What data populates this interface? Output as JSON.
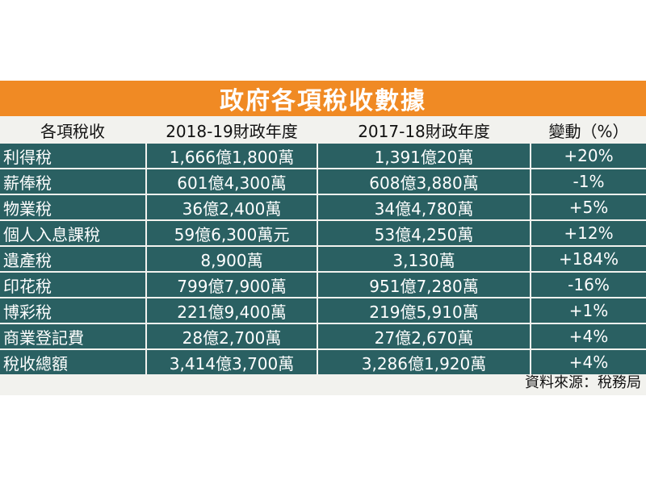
{
  "title": "政府各項稅收數據",
  "headers": [
    "各項稅收",
    "2018-19財政年度",
    "2017-18財政年度",
    "變動（%）"
  ],
  "rows": [
    [
      "利得稅",
      "1,666億1,800萬",
      "1,391億20萬",
      "+20%"
    ],
    [
      "薪俸稅",
      "601億4,300萬",
      "608億3,880萬",
      "-1%"
    ],
    [
      "物業稅",
      "36億2,400萬",
      "34億4,780萬",
      "+5%"
    ],
    [
      "個人入息課稅",
      "59億6,300萬元",
      "53億4,250萬",
      "+12%"
    ],
    [
      "遺產稅",
      "8,900萬",
      "3,130萬",
      "+184%"
    ],
    [
      "印花稅",
      "799億7,900萬",
      "951億7,280萬",
      "-16%"
    ],
    [
      "博彩稅",
      "221億9,400萬",
      "219億5,910萬",
      "+1%"
    ],
    [
      "商業登記費",
      "28億2,700萬",
      "27億2,670萬",
      "+4%"
    ],
    [
      "稅收總額",
      "3,414億3,700萬",
      "3,286億1,920萬",
      "+4%"
    ]
  ],
  "source": "資料來源：稅務局",
  "colors": {
    "title_bg": "#f08a24",
    "row_bg": "#2a6062",
    "page_bg": "#f2f2ee"
  }
}
